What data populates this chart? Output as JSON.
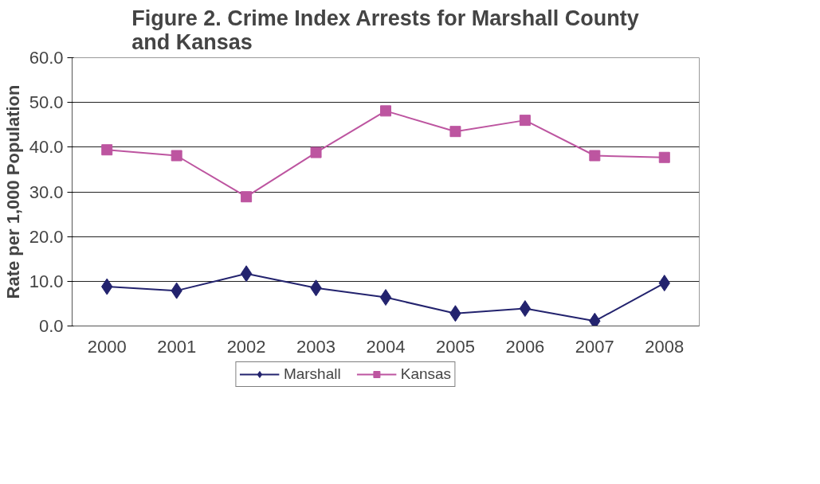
{
  "chart_data": {
    "type": "line",
    "title": "Figure 2. Crime Index Arrests for Marshall County\nand Kansas",
    "ylabel": "Rate per 1,000 Population",
    "categories": [
      "2000",
      "2001",
      "2002",
      "2003",
      "2004",
      "2005",
      "2006",
      "2007",
      "2008"
    ],
    "series": [
      {
        "name": "Marshall",
        "color": "#23236e",
        "marker": "diamond",
        "values": [
          8.8,
          7.9,
          11.7,
          8.5,
          6.4,
          2.8,
          3.9,
          1.1,
          9.6
        ]
      },
      {
        "name": "Kansas",
        "color": "#bd55a0",
        "marker": "square",
        "values": [
          39.4,
          38.1,
          28.9,
          38.8,
          48.1,
          43.5,
          46.0,
          38.1,
          37.7
        ]
      }
    ],
    "ylim": [
      0,
      60
    ],
    "yticks": [
      {
        "value": 0,
        "label": "0.0"
      },
      {
        "value": 10,
        "label": "10.0"
      },
      {
        "value": 20,
        "label": "20.0"
      },
      {
        "value": 30,
        "label": "30.0"
      },
      {
        "value": 40,
        "label": "40.0"
      },
      {
        "value": 50,
        "label": "50.0"
      },
      {
        "value": 60,
        "label": "60.0"
      }
    ],
    "grid": "y",
    "legend": "bottom",
    "line_style": "solid"
  }
}
